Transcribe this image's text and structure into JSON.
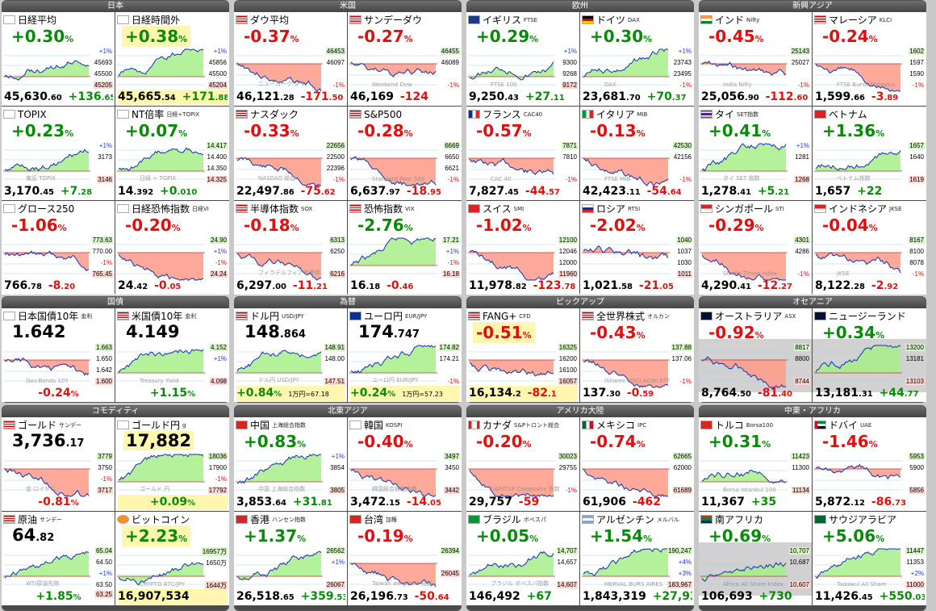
{
  "sections": [
    {
      "id": "nihon",
      "label": "日本"
    },
    {
      "id": "beikoku",
      "label": "米国"
    },
    {
      "id": "oshu",
      "label": "欧州"
    },
    {
      "id": "shinko",
      "label": "新興アジア"
    },
    {
      "id": "kokusai",
      "label": "国債"
    },
    {
      "id": "kawase",
      "label": "為替"
    },
    {
      "id": "pickup",
      "label": "ピックアップ"
    },
    {
      "id": "oceania",
      "label": "オセアニア"
    },
    {
      "id": "commodity",
      "label": "コモディティ"
    },
    {
      "id": "hokuto",
      "label": "北東アジア"
    },
    {
      "id": "americas",
      "label": "アメリカ大陸"
    },
    {
      "id": "mideast",
      "label": "中東・アフリカ"
    }
  ],
  "cards": [
    {
      "name": "日経平均",
      "sub": "",
      "flag": "jp",
      "pct": "+0.30",
      "trend": "up",
      "value": "45,630",
      "dec": ".60",
      "chg": "+136",
      "chgdec": ".65",
      "levels": [
        "+1%",
        "45693",
        "45500",
        "45205"
      ],
      "wm": "",
      "bgYellow": false
    },
    {
      "name": "日経時間外",
      "sub": "",
      "flag": "jp",
      "pct": "+0.38",
      "trend": "up",
      "value": "45,665",
      "dec": ".54",
      "chg": "+171",
      "chgdec": ".88",
      "levels": [
        "+1%",
        "45856",
        "45500",
        "45204"
      ],
      "wm": "",
      "bgYellow": true
    },
    {
      "name": "ダウ平均",
      "sub": "",
      "flag": "us",
      "pct": "-0.37",
      "trend": "dn",
      "value": "46,121",
      "dec": ".28",
      "chg": "-171",
      "chgdec": ".50",
      "levels": [
        "46453",
        "46097",
        "-1%"
      ],
      "wm": "ニューヨーク ダウ",
      "bgYellow": false
    },
    {
      "name": "サンデーダウ",
      "sub": "",
      "flag": "us",
      "pct": "-0.27",
      "trend": "dn",
      "value": "46,169",
      "dec": "",
      "chg": "-124",
      "chgdec": "",
      "levels": [
        "46455",
        "46089",
        "-1%"
      ],
      "wm": "Weekend Dow",
      "bgYellow": false
    },
    {
      "name": "イギリス",
      "sub": "FTSE",
      "flag": "gb",
      "pct": "+0.29",
      "trend": "up",
      "value": "9,250",
      "dec": ".43",
      "chg": "+27",
      "chgdec": ".11",
      "levels": [
        "+1%",
        "9300",
        "9268",
        "9172"
      ],
      "wm": "FTSE 100",
      "bgYellow": false
    },
    {
      "name": "ドイツ",
      "sub": "DAX",
      "flag": "de",
      "pct": "+0.30",
      "trend": "up",
      "value": "23,681",
      "dec": ".70",
      "chg": "+70",
      "chgdec": ".37",
      "levels": [
        "+1%",
        "23743",
        "23495",
        "-1%"
      ],
      "wm": "DAX",
      "bgYellow": false
    },
    {
      "name": "インド",
      "sub": "Nifty",
      "flag": "in",
      "pct": "-0.45",
      "trend": "dn",
      "value": "25,056",
      "dec": ".90",
      "chg": "-112",
      "chgdec": ".60",
      "levels": [
        "25143",
        "25027",
        "-1%"
      ],
      "wm": "India Nifty",
      "bgYellow": false
    },
    {
      "name": "マレーシア",
      "sub": "KLCI",
      "flag": "my",
      "pct": "-0.24",
      "trend": "dn",
      "value": "1,599",
      "dec": ".66",
      "chg": "-3",
      "chgdec": ".89",
      "levels": [
        "1602",
        "1597",
        "1590",
        "-1%"
      ],
      "wm": "FTSE Bursa Malaysia",
      "bgYellow": false
    },
    {
      "name": "TOPIX",
      "sub": "",
      "flag": "jp",
      "pct": "+0.23",
      "trend": "up",
      "value": "3,170",
      "dec": ".45",
      "chg": "+7",
      "chgdec": ".28",
      "levels": [
        "+1%",
        "3173",
        "3146"
      ],
      "wm": "東証 TOPIX",
      "bgYellow": false
    },
    {
      "name": "NT倍率",
      "sub": "日経÷TOPIX",
      "flag": "jp",
      "pct": "+0.07",
      "trend": "up",
      "value": "14",
      "dec": ".392",
      "chg": "+0",
      "chgdec": ".010",
      "levels": [
        "14.417",
        "14.400",
        "14.350",
        "14.325"
      ],
      "wm": "日経 ÷ TOPIX",
      "bgYellow": false
    },
    {
      "name": "ナスダック",
      "sub": "",
      "flag": "us",
      "pct": "-0.33",
      "trend": "dn",
      "value": "22,497",
      "dec": ".86",
      "chg": "-75",
      "chgdec": ".62",
      "levels": [
        "22656",
        "22500",
        "22396",
        "-1%"
      ],
      "wm": "NASDAQ 総合",
      "bgYellow": false
    },
    {
      "name": "S&P500",
      "sub": "",
      "flag": "us",
      "pct": "-0.28",
      "trend": "dn",
      "value": "6,637",
      "dec": ".97",
      "chg": "-18",
      "chgdec": ".95",
      "levels": [
        "6669",
        "6650",
        "6621",
        "-1%"
      ],
      "wm": "Standard Poor 500",
      "bgYellow": false
    },
    {
      "name": "フランス",
      "sub": "CAC40",
      "flag": "fr",
      "pct": "-0.57",
      "trend": "dn",
      "value": "7,827",
      "dec": ".45",
      "chg": "-44",
      "chgdec": ".57",
      "levels": [
        "7871",
        "7810",
        "-1%"
      ],
      "wm": "CAC 40",
      "bgYellow": false
    },
    {
      "name": "イタリア",
      "sub": "MIB",
      "flag": "it",
      "pct": "-0.13",
      "trend": "dn",
      "value": "42,423",
      "dec": ".11",
      "chg": "-54",
      "chgdec": ".64",
      "levels": [
        "42530",
        "42156",
        "-1%"
      ],
      "wm": "FTSE MIB",
      "bgYellow": false
    },
    {
      "name": "タイ",
      "sub": "SET指数",
      "flag": "th",
      "pct": "+0.41",
      "trend": "up",
      "value": "1,278",
      "dec": ".41",
      "chg": "+5",
      "chgdec": ".21",
      "levels": [
        "+1%",
        "1281",
        "1268"
      ],
      "wm": "タイ SET 指数",
      "bgYellow": false
    },
    {
      "name": "ベトナム",
      "sub": "",
      "flag": "vn",
      "pct": "+1.36",
      "trend": "up",
      "value": "1,657",
      "dec": "",
      "chg": "+22",
      "chgdec": "",
      "levels": [
        "1657",
        "1640",
        "1619"
      ],
      "wm": "ベトナム指数",
      "bgYellow": false
    },
    {
      "name": "グロース250",
      "sub": "",
      "flag": "jp",
      "pct": "-1.06",
      "trend": "dn",
      "value": "766",
      "dec": ".78",
      "chg": "-8",
      "chgdec": ".20",
      "levels": [
        "773.63",
        "770.00",
        "-1%",
        "765.45"
      ],
      "wm": "",
      "bgYellow": false
    },
    {
      "name": "日経恐怖指数",
      "sub": "日経VI",
      "flag": "jp",
      "pct": "-0.20",
      "trend": "dn",
      "value": "24",
      "dec": ".42",
      "chg": "-0",
      "chgdec": ".05",
      "levels": [
        "24.90",
        "+1%",
        "-1%",
        "24.24"
      ],
      "wm": "",
      "bgYellow": false
    },
    {
      "name": "半導体指数",
      "sub": "SOX",
      "flag": "us",
      "pct": "-0.18",
      "trend": "dn",
      "value": "6,297",
      "dec": ".00",
      "chg": "-11",
      "chgdec": ".21",
      "levels": [
        "6313",
        "6250",
        "6216"
      ],
      "wm": "フィラデルフィア半導体",
      "bgYellow": false
    },
    {
      "name": "恐怖指数",
      "sub": "VIX",
      "flag": "us",
      "pct": "-2.76",
      "trend": "up",
      "value": "16",
      "dec": ".18",
      "chg": "-0",
      "chgdec": ".46",
      "levels": [
        "17.21",
        "+1%",
        "-1%",
        "16.18"
      ],
      "wm": "",
      "bgYellow": false
    },
    {
      "name": "スイス",
      "sub": "SMI",
      "flag": "ch",
      "pct": "-1.02",
      "trend": "dn",
      "value": "11,978",
      "dec": ".82",
      "chg": "-123",
      "chgdec": ".78",
      "levels": [
        "12100",
        "12046",
        "12000",
        "11960"
      ],
      "wm": "",
      "bgYellow": false
    },
    {
      "name": "ロシア",
      "sub": "RTSI",
      "flag": "ru",
      "pct": "-2.02",
      "trend": "dn",
      "value": "1,021",
      "dec": ".58",
      "chg": "-21",
      "chgdec": ".05",
      "levels": [
        "1040",
        "1037",
        "1030",
        "1011"
      ],
      "wm": "",
      "bgYellow": false
    },
    {
      "name": "シンガポール",
      "sub": "STI",
      "flag": "sg",
      "pct": "-0.29",
      "trend": "dn",
      "value": "4,290",
      "dec": ".41",
      "chg": "-12",
      "chgdec": ".27",
      "levels": [
        "4301",
        "4286",
        "-1%"
      ],
      "wm": "Straits Times Index",
      "bgYellow": false
    },
    {
      "name": "インドネシア",
      "sub": "JKSE",
      "flag": "id",
      "pct": "-0.04",
      "trend": "dn",
      "value": "8,122",
      "dec": ".28",
      "chg": "-2",
      "chgdec": ".92",
      "levels": [
        "8167",
        "8100",
        "8078",
        "-1%"
      ],
      "wm": "JKSE",
      "bgYellow": false
    },
    {
      "name": "日本国債10年",
      "sub": "金利",
      "flag": "jp",
      "big": "1.642",
      "trend": "dn",
      "bottomPct": "-0.24",
      "levels": [
        "1.663",
        "1.650",
        "1.642",
        "1.600"
      ],
      "wm": "Gov.Bonds 10Y",
      "bgYellow": false
    },
    {
      "name": "米国債10年",
      "sub": "金利",
      "flag": "us",
      "big": "4.149",
      "trend": "up",
      "bottomPct": "+1.15",
      "levels": [
        "4.152",
        "+1%",
        "4.098"
      ],
      "wm": "Treasury Yield",
      "bgYellow": false
    },
    {
      "name": "ドル円",
      "sub": "USD/JPY",
      "flag": "us",
      "bigInt": "148",
      "bigDec": ".864",
      "trend": "up",
      "bottomPct": "+0.84",
      "rate": "1万円=67.18",
      "levels": [
        "148.91",
        "148.00",
        "147.51"
      ],
      "wm": "ドル円 USD/JPY",
      "bgYellow": false
    },
    {
      "name": "ユーロ円",
      "sub": "EUR/JPY",
      "flag": "eu",
      "bigInt": "174",
      "bigDec": ".747",
      "trend": "up",
      "bottomPct": "+0.24",
      "rate": "1万円=57.23",
      "levels": [
        "174.82",
        "174.21",
        "-1%"
      ],
      "wm": "ユーロ円 EUR/JPY",
      "bgYellow": false
    },
    {
      "name": "FANG+",
      "sub": "CFD",
      "flag": "us",
      "pct": "-0.51",
      "trend": "dn",
      "value": "16,134",
      "dec": ".2",
      "chg": "-82",
      "chgdec": ".1",
      "levels": [
        "16325",
        "16200",
        "16100",
        "16057"
      ],
      "wm": "",
      "bgYellow": true
    },
    {
      "name": "全世界株式",
      "sub": "オルカン",
      "flag": "us",
      "pct": "-0.43",
      "trend": "dn",
      "value": "137",
      "dec": ".30",
      "chg": "-0",
      "chgdec": ".59",
      "levels": [
        "137.88",
        "137.06",
        "-1%"
      ],
      "wm": "iShares MSCI ACWI ETF",
      "bgYellow": false
    },
    {
      "name": "オーストラリア",
      "sub": "ASX",
      "flag": "au",
      "pct": "-0.92",
      "trend": "dn",
      "value": "8,764",
      "dec": ".50",
      "chg": "-81",
      "chgdec": ".40",
      "levels": [
        "8817",
        "8800",
        "8744"
      ],
      "wm": "",
      "bgYellow": false,
      "grey": true
    },
    {
      "name": "ニュージーランド",
      "sub": "",
      "flag": "nz",
      "pct": "+0.34",
      "trend": "up",
      "value": "13,181",
      "dec": ".31",
      "chg": "+44",
      "chgdec": ".77",
      "levels": [
        "13200",
        "13181",
        "13103"
      ],
      "wm": "",
      "bgYellow": false,
      "grey": true
    },
    {
      "name": "ゴールド",
      "sub": "サンデー",
      "flag": "us",
      "bigInt": "3,736",
      "bigDec": ".17",
      "trend": "dn",
      "bottomPct": "-0.81",
      "levels": [
        "3779",
        "3750",
        "-1%",
        "3717"
      ],
      "wm": "金 ロイヤル",
      "bgYellow": false
    },
    {
      "name": "ゴールド円",
      "sub": "g",
      "flag": "jp",
      "bigInt": "17,882",
      "bigDec": "",
      "trend": "up",
      "bottomPct": "+0.09",
      "levels": [
        "18036",
        "17900",
        "-1%",
        "17792"
      ],
      "wm": "ゴールド 円",
      "bgYellow": true
    },
    {
      "name": "中国",
      "sub": "上海総合指数",
      "flag": "cn",
      "pct": "+0.83",
      "trend": "up",
      "value": "3,853",
      "dec": ".64",
      "chg": "+31",
      "chgdec": ".81",
      "levels": [
        "+1%",
        "3854",
        "3805"
      ],
      "wm": "中国 上海総合指数",
      "bgYellow": false
    },
    {
      "name": "韓国",
      "sub": "KOSPI",
      "flag": "kr",
      "pct": "-0.40",
      "trend": "dn",
      "value": "3,472",
      "dec": ".15",
      "chg": "-14",
      "chgdec": ".05",
      "levels": [
        "3497",
        "3450",
        "3442"
      ],
      "wm": "韓国総合株価指数",
      "bgYellow": false
    },
    {
      "name": "カナダ",
      "sub": "S&Pトロント総合",
      "flag": "ca",
      "pct": "-0.20",
      "trend": "dn",
      "value": "29,757",
      "dec": "",
      "chg": "-59",
      "chgdec": "",
      "levels": [
        "30023",
        "29755",
        "-1%"
      ],
      "wm": "S&P/TSX Composite 指数",
      "bgYellow": false
    },
    {
      "name": "メキシコ",
      "sub": "IPC",
      "flag": "mx",
      "pct": "-0.74",
      "trend": "dn",
      "value": "61,906",
      "dec": "",
      "chg": "-462",
      "chgdec": "",
      "levels": [
        "62665",
        "62000",
        "61689"
      ],
      "wm": "",
      "bgYellow": false
    },
    {
      "name": "トルコ",
      "sub": "Borsa100",
      "flag": "tr",
      "pct": "+0.31",
      "trend": "up",
      "value": "11,367",
      "dec": "",
      "chg": "+35",
      "chgdec": "",
      "levels": [
        "11423",
        "11300",
        "11134"
      ],
      "wm": "Borsa Istanbul 100",
      "bgYellow": false
    },
    {
      "name": "ドバイ",
      "sub": "UAE",
      "flag": "ae",
      "pct": "-1.46",
      "trend": "dn",
      "value": "5,872",
      "dec": ".12",
      "chg": "-86",
      "chgdec": ".73",
      "levels": [
        "5953",
        "5900",
        "5856"
      ],
      "wm": "",
      "bgYellow": false
    },
    {
      "name": "原油",
      "sub": "サンデー",
      "flag": "us",
      "bigInt": "64",
      "bigDec": ".82",
      "trend": "up",
      "bottomPct": "+1.85",
      "levels": [
        "65.04",
        "64.50",
        "+1%",
        "63.50",
        "63.25"
      ],
      "wm": "WTI原油先物",
      "bgYellow": false
    },
    {
      "name": "ビットコイン",
      "sub": "",
      "flag": "btc",
      "pct": "+2.23",
      "trend": "up",
      "value": "16,907,534",
      "dec": "",
      "chg": "",
      "chgdec": "",
      "levels": [
        "16957万",
        "1650万",
        "1644万"
      ],
      "wm": "CRYPTO BTC/JPY",
      "bgYellow": true
    },
    {
      "name": "香港",
      "sub": "ハンセン指数",
      "flag": "hk",
      "pct": "+1.37",
      "trend": "up",
      "value": "26,518",
      "dec": ".65",
      "chg": "+359",
      "chgdec": ".53",
      "levels": [
        "26562",
        "+1%",
        "26067"
      ],
      "wm": "",
      "bgYellow": false
    },
    {
      "name": "台湾",
      "sub": "加権",
      "flag": "tw",
      "pct": "-0.19",
      "trend": "dn",
      "value": "26,196",
      "dec": ".73",
      "chg": "-50",
      "chgdec": ".64",
      "levels": [
        "26394",
        "26045"
      ],
      "wm": "Taiwan weighted 指数",
      "bgYellow": false
    },
    {
      "name": "ブラジル",
      "sub": "ボベスパ",
      "flag": "br",
      "pct": "+0.05",
      "trend": "up",
      "value": "146,492",
      "dec": "",
      "chg": "+67",
      "chgdec": "",
      "levels": [
        "14,707",
        "14,657",
        "14,607"
      ],
      "wm": "ブラジル ボベスパ指数",
      "bgYellow": false
    },
    {
      "name": "アルゼンチン",
      "sub": "メルバル",
      "flag": "ar",
      "pct": "+1.54",
      "trend": "up",
      "value": "1,843,319",
      "dec": "",
      "chg": "+27,937",
      "chgdec": "",
      "levels": [
        "190,247",
        "+4%",
        "+3%",
        "183,967"
      ],
      "wm": "MERVAL BURS AIRES",
      "bgYellow": false
    },
    {
      "name": "南アフリカ",
      "sub": "",
      "flag": "za",
      "pct": "+0.69",
      "trend": "up",
      "value": "106,693",
      "dec": "",
      "chg": "+730",
      "chgdec": "",
      "levels": [
        "10,707",
        "10,687",
        "10,607"
      ],
      "wm": "Africa All Share Index",
      "bgYellow": false,
      "grey": true
    },
    {
      "name": "サウジアラビア",
      "sub": "",
      "flag": "sa",
      "pct": "+5.06",
      "trend": "up",
      "value": "11,426",
      "dec": ".45",
      "chg": "+550",
      "chgdec": ".03",
      "levels": [
        "11447",
        "11353",
        "+2%",
        "11000"
      ],
      "wm": "Tadawul All Share",
      "bgYellow": false
    }
  ]
}
